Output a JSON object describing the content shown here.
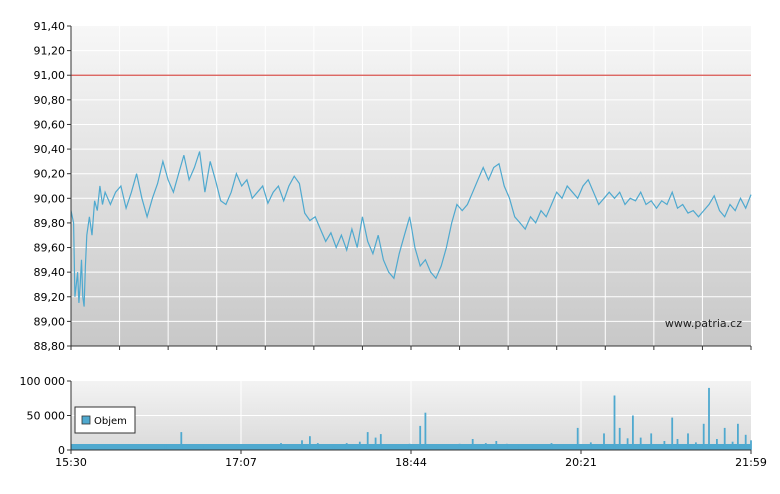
{
  "watermark": "www.patria.cz",
  "chart_data": [
    {
      "type": "line",
      "x_ticks": [
        "15:30",
        "17:07",
        "18:44",
        "20:21",
        "21:59"
      ],
      "y_tick_labels": [
        "91,40",
        "91,20",
        "91,00",
        "90,80",
        "90,60",
        "90,40",
        "90,20",
        "90,00",
        "89,80",
        "89,60",
        "89,40",
        "89,20",
        "89,00",
        "88,80"
      ],
      "ylim": [
        88.8,
        91.4
      ],
      "reference_line": 91.0,
      "grid": true,
      "colors": {
        "line": "#4fa9cf",
        "reference": "#d9534f",
        "background_top": "#f6f6f6",
        "background_bottom": "#c9c9c9"
      },
      "series": [
        {
          "points": [
            [
              0,
              89.9
            ],
            [
              1,
              89.8
            ],
            [
              1.5,
              89.2
            ],
            [
              2,
              89.3
            ],
            [
              2.5,
              89.4
            ],
            [
              3,
              89.15
            ],
            [
              3.5,
              89.3
            ],
            [
              4,
              89.5
            ],
            [
              4.5,
              89.2
            ],
            [
              5,
              89.12
            ],
            [
              5.5,
              89.45
            ],
            [
              6,
              89.7
            ],
            [
              7,
              89.85
            ],
            [
              8,
              89.7
            ],
            [
              9,
              89.98
            ],
            [
              10,
              89.9
            ],
            [
              11,
              90.1
            ],
            [
              12,
              89.95
            ],
            [
              13,
              90.05
            ],
            [
              15,
              89.95
            ],
            [
              17,
              90.05
            ],
            [
              19,
              90.1
            ],
            [
              21,
              89.92
            ],
            [
              23,
              90.05
            ],
            [
              25,
              90.2
            ],
            [
              27,
              90.0
            ],
            [
              29,
              89.85
            ],
            [
              31,
              90.0
            ],
            [
              33,
              90.12
            ],
            [
              35,
              90.3
            ],
            [
              37,
              90.15
            ],
            [
              39,
              90.05
            ],
            [
              41,
              90.2
            ],
            [
              43,
              90.35
            ],
            [
              45,
              90.15
            ],
            [
              47,
              90.25
            ],
            [
              49,
              90.38
            ],
            [
              51,
              90.05
            ],
            [
              53,
              90.3
            ],
            [
              55,
              90.15
            ],
            [
              57,
              89.98
            ],
            [
              59,
              89.95
            ],
            [
              61,
              90.05
            ],
            [
              63,
              90.2
            ],
            [
              65,
              90.1
            ],
            [
              67,
              90.15
            ],
            [
              69,
              90.0
            ],
            [
              71,
              90.05
            ],
            [
              73,
              90.1
            ],
            [
              75,
              89.96
            ],
            [
              77,
              90.05
            ],
            [
              79,
              90.1
            ],
            [
              81,
              89.98
            ],
            [
              83,
              90.1
            ],
            [
              85,
              90.18
            ],
            [
              87,
              90.12
            ],
            [
              89,
              89.88
            ],
            [
              91,
              89.82
            ],
            [
              93,
              89.85
            ],
            [
              95,
              89.75
            ],
            [
              97,
              89.65
            ],
            [
              99,
              89.72
            ],
            [
              101,
              89.6
            ],
            [
              103,
              89.7
            ],
            [
              105,
              89.58
            ],
            [
              107,
              89.75
            ],
            [
              109,
              89.6
            ],
            [
              111,
              89.85
            ],
            [
              113,
              89.65
            ],
            [
              115,
              89.55
            ],
            [
              117,
              89.7
            ],
            [
              119,
              89.5
            ],
            [
              121,
              89.4
            ],
            [
              123,
              89.35
            ],
            [
              125,
              89.55
            ],
            [
              127,
              89.7
            ],
            [
              129,
              89.85
            ],
            [
              131,
              89.6
            ],
            [
              133,
              89.45
            ],
            [
              135,
              89.5
            ],
            [
              137,
              89.4
            ],
            [
              139,
              89.35
            ],
            [
              141,
              89.45
            ],
            [
              143,
              89.6
            ],
            [
              145,
              89.8
            ],
            [
              147,
              89.95
            ],
            [
              149,
              89.9
            ],
            [
              151,
              89.95
            ],
            [
              153,
              90.05
            ],
            [
              155,
              90.15
            ],
            [
              157,
              90.25
            ],
            [
              159,
              90.15
            ],
            [
              161,
              90.25
            ],
            [
              163,
              90.28
            ],
            [
              165,
              90.1
            ],
            [
              167,
              90.0
            ],
            [
              169,
              89.85
            ],
            [
              171,
              89.8
            ],
            [
              173,
              89.75
            ],
            [
              175,
              89.85
            ],
            [
              177,
              89.8
            ],
            [
              179,
              89.9
            ],
            [
              181,
              89.85
            ],
            [
              183,
              89.95
            ],
            [
              185,
              90.05
            ],
            [
              187,
              90.0
            ],
            [
              189,
              90.1
            ],
            [
              191,
              90.05
            ],
            [
              193,
              90.0
            ],
            [
              195,
              90.1
            ],
            [
              197,
              90.15
            ],
            [
              199,
              90.05
            ],
            [
              201,
              89.95
            ],
            [
              203,
              90.0
            ],
            [
              205,
              90.05
            ],
            [
              207,
              90.0
            ],
            [
              209,
              90.05
            ],
            [
              211,
              89.95
            ],
            [
              213,
              90.0
            ],
            [
              215,
              89.98
            ],
            [
              217,
              90.05
            ],
            [
              219,
              89.95
            ],
            [
              221,
              89.98
            ],
            [
              223,
              89.92
            ],
            [
              225,
              89.98
            ],
            [
              227,
              89.95
            ],
            [
              229,
              90.05
            ],
            [
              231,
              89.92
            ],
            [
              233,
              89.95
            ],
            [
              235,
              89.88
            ],
            [
              237,
              89.9
            ],
            [
              239,
              89.85
            ],
            [
              241,
              89.9
            ],
            [
              243,
              89.95
            ],
            [
              245,
              90.02
            ],
            [
              247,
              89.9
            ],
            [
              249,
              89.85
            ],
            [
              251,
              89.95
            ],
            [
              253,
              89.9
            ],
            [
              255,
              90.0
            ],
            [
              257,
              89.92
            ],
            [
              259,
              90.03
            ]
          ]
        }
      ]
    },
    {
      "type": "bar",
      "x_ticks": [
        "15:30",
        "17:07",
        "18:44",
        "20:21",
        "21:59"
      ],
      "y_tick_labels": [
        "100 000",
        "50 000",
        "0"
      ],
      "ylim": [
        0,
        100000
      ],
      "legend": "Objem",
      "legend_position": "left",
      "grid": true,
      "colors": {
        "bar": "#4fa9cf"
      },
      "series": [
        {
          "name": "Objem",
          "spikes": [
            [
              1,
              3000
            ],
            [
              13,
              7000
            ],
            [
              36,
              8000
            ],
            [
              42,
              26000
            ],
            [
              50,
              6000
            ],
            [
              63,
              5000
            ],
            [
              80,
              10000
            ],
            [
              88,
              14000
            ],
            [
              91,
              20000
            ],
            [
              94,
              10000
            ],
            [
              100,
              5000
            ],
            [
              105,
              10000
            ],
            [
              110,
              12000
            ],
            [
              113,
              26000
            ],
            [
              116,
              18000
            ],
            [
              118,
              23000
            ],
            [
              124,
              7000
            ],
            [
              129,
              9000
            ],
            [
              133,
              35000
            ],
            [
              135,
              54000
            ],
            [
              139,
              6000
            ],
            [
              148,
              9000
            ],
            [
              153,
              16000
            ],
            [
              158,
              10000
            ],
            [
              162,
              13000
            ],
            [
              166,
              9000
            ],
            [
              170,
              8000
            ],
            [
              176,
              7000
            ],
            [
              183,
              10000
            ],
            [
              188,
              7000
            ],
            [
              193,
              32000
            ],
            [
              198,
              11000
            ],
            [
              203,
              24000
            ],
            [
              207,
              79000
            ],
            [
              209,
              32000
            ],
            [
              212,
              17000
            ],
            [
              214,
              50000
            ],
            [
              217,
              18000
            ],
            [
              221,
              24000
            ],
            [
              226,
              13000
            ],
            [
              229,
              47000
            ],
            [
              231,
              16000
            ],
            [
              235,
              24000
            ],
            [
              238,
              11000
            ],
            [
              241,
              38000
            ],
            [
              243,
              90000
            ],
            [
              246,
              16000
            ],
            [
              249,
              32000
            ],
            [
              252,
              12000
            ],
            [
              254,
              38000
            ],
            [
              257,
              22000
            ],
            [
              259,
              14000
            ]
          ]
        }
      ]
    }
  ]
}
